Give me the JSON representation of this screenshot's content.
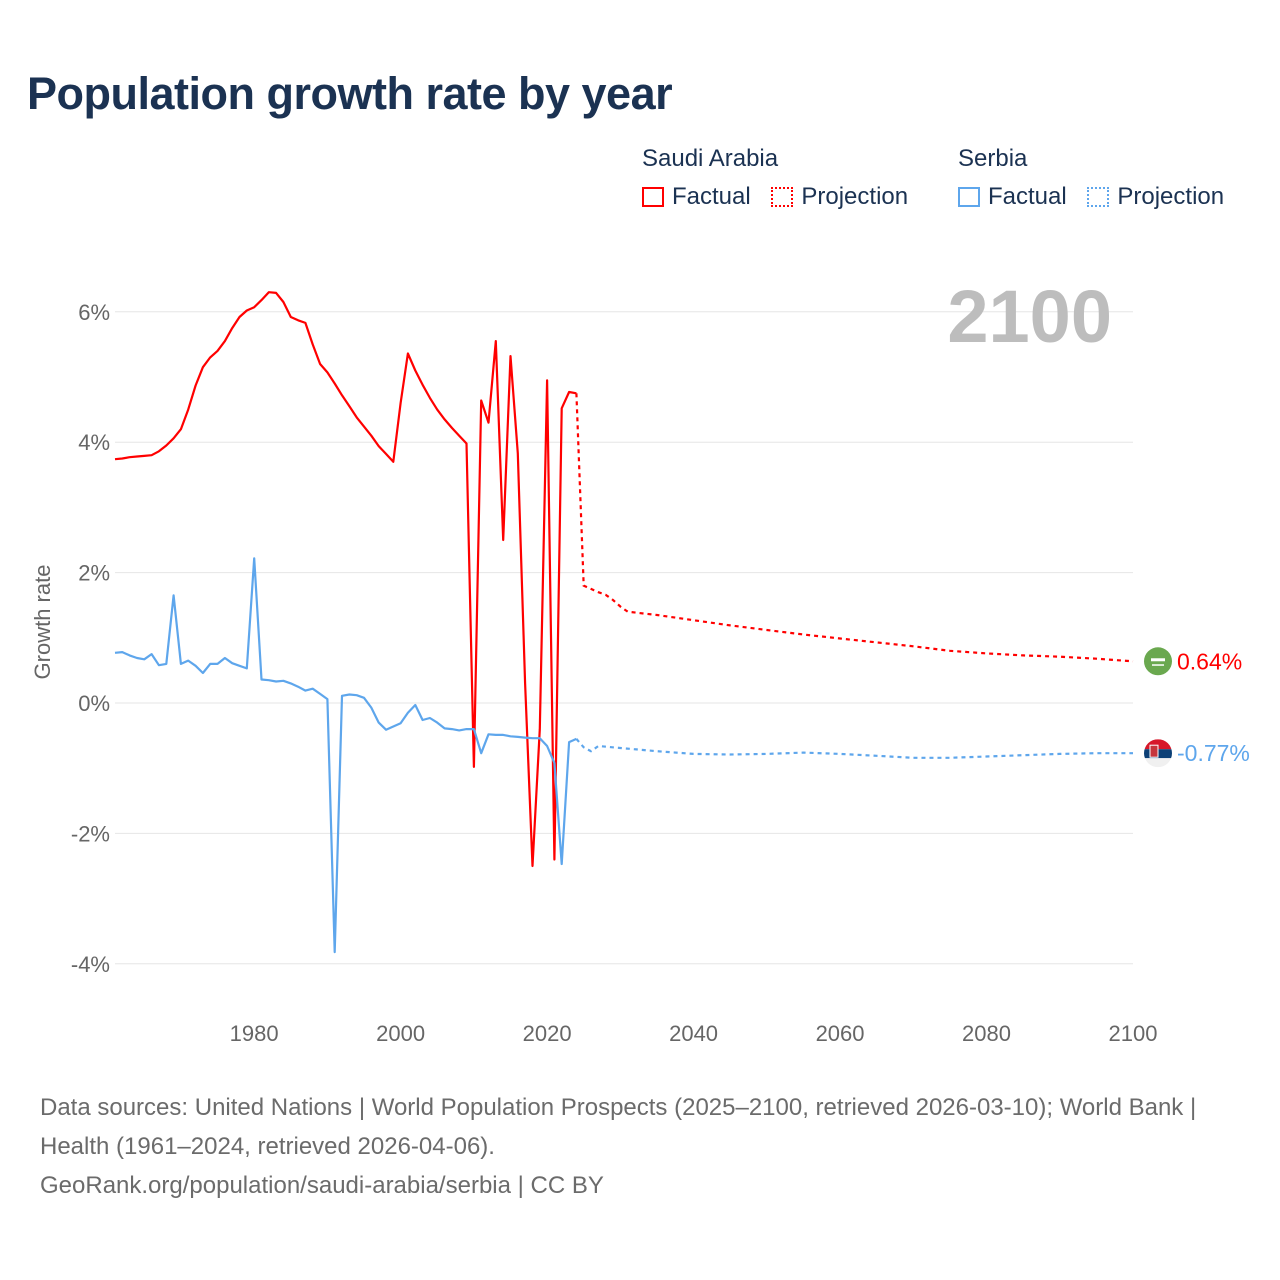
{
  "title": "Population growth rate by year",
  "legend": {
    "groups": [
      {
        "name": "Saudi Arabia",
        "color": "#ff0000",
        "factual": "Factual",
        "projection": "Projection"
      },
      {
        "name": "Serbia",
        "color": "#5ea6ec",
        "factual": "Factual",
        "projection": "Projection"
      }
    ]
  },
  "year_overlay": "2100",
  "footer": {
    "sources": "Data sources: United Nations | World Population Prospects (2025–2100, retrieved 2026-03-10); World Bank | Health (1961–2024, retrieved 2026-04-06).",
    "link": "GeoRank.org/population/saudi-arabia/serbia | CC BY"
  },
  "chart_data": {
    "type": "line",
    "title": "Population growth rate by year",
    "xlabel": "",
    "ylabel": "Growth rate",
    "xlim": [
      1961,
      2100
    ],
    "ylim": [
      -4.7,
      6.5
    ],
    "xticks": [
      1980,
      2000,
      2020,
      2040,
      2060,
      2080,
      2100
    ],
    "xtick_labels": [
      "1980",
      "2000",
      "2020",
      "2040",
      "2060",
      "2080",
      "2100"
    ],
    "yticks": [
      6,
      4,
      2,
      0,
      -2,
      -4
    ],
    "ytick_labels": [
      "6%",
      "4%",
      "2%",
      "0%",
      "-2%",
      "-4%"
    ],
    "grid": true,
    "legend_position": "top-right",
    "series": [
      {
        "name": "Saudi Arabia",
        "color": "#ff0000",
        "end_label": "0.64%",
        "flag": "saudi-arabia",
        "factual": {
          "x": [
            1961,
            1962,
            1963,
            1964,
            1965,
            1966,
            1967,
            1968,
            1969,
            1970,
            1971,
            1972,
            1973,
            1974,
            1975,
            1976,
            1977,
            1978,
            1979,
            1980,
            1981,
            1982,
            1983,
            1984,
            1985,
            1986,
            1987,
            1988,
            1989,
            1990,
            1991,
            1992,
            1993,
            1994,
            1995,
            1996,
            1997,
            1998,
            1999,
            2000,
            2001,
            2002,
            2003,
            2004,
            2005,
            2006,
            2007,
            2008,
            2009,
            2010,
            2011,
            2012,
            2013,
            2014,
            2015,
            2016,
            2017,
            2018,
            2019,
            2020,
            2021,
            2022,
            2023,
            2024
          ],
          "y": [
            3.74,
            3.75,
            3.77,
            3.78,
            3.79,
            3.8,
            3.86,
            3.95,
            4.06,
            4.2,
            4.5,
            4.87,
            5.15,
            5.3,
            5.4,
            5.55,
            5.75,
            5.92,
            6.02,
            6.07,
            6.18,
            6.3,
            6.29,
            6.15,
            5.92,
            5.87,
            5.83,
            5.5,
            5.2,
            5.07,
            4.9,
            4.72,
            4.55,
            4.38,
            4.24,
            4.1,
            3.94,
            3.82,
            3.7,
            4.6,
            5.36,
            5.1,
            4.88,
            4.68,
            4.5,
            4.35,
            4.22,
            4.1,
            3.98,
            -0.98,
            4.64,
            4.3,
            5.55,
            2.5,
            5.32,
            3.83,
            0.3,
            -2.5,
            -0.4,
            4.95,
            -2.4,
            4.52,
            4.77,
            4.75
          ]
        },
        "projection": {
          "x": [
            2024,
            2025,
            2026,
            2027,
            2028,
            2029,
            2030,
            2031,
            2035,
            2040,
            2045,
            2050,
            2055,
            2060,
            2065,
            2070,
            2075,
            2080,
            2085,
            2090,
            2095,
            2100
          ],
          "y": [
            4.75,
            1.8,
            1.75,
            1.7,
            1.66,
            1.58,
            1.48,
            1.4,
            1.35,
            1.27,
            1.19,
            1.12,
            1.05,
            0.99,
            0.93,
            0.87,
            0.8,
            0.76,
            0.73,
            0.71,
            0.68,
            0.64
          ]
        }
      },
      {
        "name": "Serbia",
        "color": "#5ea6ec",
        "end_label": "-0.77%",
        "flag": "serbia",
        "factual": {
          "x": [
            1961,
            1962,
            1963,
            1964,
            1965,
            1966,
            1967,
            1968,
            1969,
            1970,
            1971,
            1972,
            1973,
            1974,
            1975,
            1976,
            1977,
            1978,
            1979,
            1980,
            1981,
            1982,
            1983,
            1984,
            1985,
            1986,
            1987,
            1988,
            1989,
            1990,
            1991,
            1992,
            1993,
            1994,
            1995,
            1996,
            1997,
            1998,
            1999,
            2000,
            2001,
            2002,
            2003,
            2004,
            2005,
            2006,
            2007,
            2008,
            2009,
            2010,
            2011,
            2012,
            2013,
            2014,
            2015,
            2016,
            2017,
            2018,
            2019,
            2020,
            2021,
            2022,
            2023,
            2024
          ],
          "y": [
            0.77,
            0.78,
            0.73,
            0.69,
            0.67,
            0.75,
            0.58,
            0.6,
            1.65,
            0.6,
            0.65,
            0.57,
            0.46,
            0.6,
            0.6,
            0.69,
            0.61,
            0.57,
            0.53,
            2.22,
            0.36,
            0.35,
            0.33,
            0.34,
            0.3,
            0.25,
            0.19,
            0.22,
            0.14,
            0.06,
            -3.82,
            0.11,
            0.13,
            0.12,
            0.08,
            -0.07,
            -0.3,
            -0.41,
            -0.36,
            -0.31,
            -0.15,
            -0.03,
            -0.26,
            -0.23,
            -0.3,
            -0.39,
            -0.4,
            -0.42,
            -0.4,
            -0.4,
            -0.77,
            -0.48,
            -0.49,
            -0.49,
            -0.51,
            -0.52,
            -0.53,
            -0.54,
            -0.54,
            -0.66,
            -0.92,
            -2.47,
            -0.6,
            -0.55
          ]
        },
        "projection": {
          "x": [
            2024,
            2025,
            2026,
            2027,
            2030,
            2035,
            2040,
            2045,
            2050,
            2055,
            2060,
            2065,
            2070,
            2075,
            2080,
            2085,
            2090,
            2095,
            2100
          ],
          "y": [
            -0.55,
            -0.68,
            -0.74,
            -0.66,
            -0.69,
            -0.74,
            -0.78,
            -0.79,
            -0.78,
            -0.76,
            -0.78,
            -0.81,
            -0.84,
            -0.84,
            -0.82,
            -0.8,
            -0.78,
            -0.77,
            -0.77
          ]
        }
      }
    ]
  }
}
